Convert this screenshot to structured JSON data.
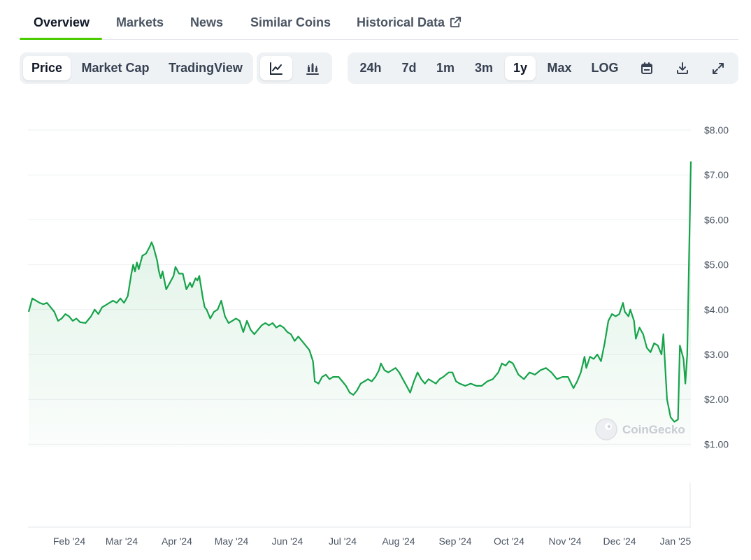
{
  "tabs": [
    {
      "label": "Overview",
      "active": true
    },
    {
      "label": "Markets"
    },
    {
      "label": "News"
    },
    {
      "label": "Similar Coins"
    },
    {
      "label": "Historical Data",
      "icon": "external-link-icon"
    }
  ],
  "view_toggle": [
    {
      "label": "Price",
      "active": true
    },
    {
      "label": "Market Cap"
    },
    {
      "label": "TradingView"
    }
  ],
  "chart_type_toggle": [
    {
      "icon": "line-chart-icon",
      "active": true
    },
    {
      "icon": "candlestick-chart-icon"
    }
  ],
  "range_toggle": [
    {
      "label": "24h"
    },
    {
      "label": "7d"
    },
    {
      "label": "1m"
    },
    {
      "label": "3m"
    },
    {
      "label": "1y",
      "active": true
    },
    {
      "label": "Max"
    },
    {
      "label": "LOG"
    }
  ],
  "toolbar_icons": [
    "calendar-icon",
    "download-icon",
    "fullscreen-icon"
  ],
  "watermark": "CoinGecko",
  "colors": {
    "line": "#16a34a",
    "fill": "#16a34a",
    "active_tab_underline": "#4bcc00"
  },
  "chart_data": {
    "type": "area",
    "y_ticks": [
      "$1.00",
      "$2.00",
      "$3.00",
      "$4.00",
      "$5.00",
      "$6.00",
      "$7.00",
      "$8.00"
    ],
    "ylim": [
      1,
      8
    ],
    "x_ticks": [
      "Feb '24",
      "Mar '24",
      "Apr '24",
      "May '24",
      "Jun '24",
      "Jul '24",
      "Aug '24",
      "Sep '24",
      "Oct '24",
      "Nov '24",
      "Dec '24",
      "Jan '25"
    ],
    "grid": true,
    "series": [
      {
        "points": [
          [
            "2024-01-09",
            3.95
          ],
          [
            "2024-01-11",
            4.25
          ],
          [
            "2024-01-13",
            4.2
          ],
          [
            "2024-01-15",
            4.15
          ],
          [
            "2024-01-17",
            4.12
          ],
          [
            "2024-01-19",
            4.15
          ],
          [
            "2024-01-21",
            4.05
          ],
          [
            "2024-01-23",
            3.95
          ],
          [
            "2024-01-25",
            3.75
          ],
          [
            "2024-01-27",
            3.8
          ],
          [
            "2024-01-29",
            3.9
          ],
          [
            "2024-01-31",
            3.85
          ],
          [
            "2024-02-02",
            3.75
          ],
          [
            "2024-02-04",
            3.8
          ],
          [
            "2024-02-06",
            3.72
          ],
          [
            "2024-02-09",
            3.7
          ],
          [
            "2024-02-12",
            3.85
          ],
          [
            "2024-02-14",
            4.0
          ],
          [
            "2024-02-16",
            3.9
          ],
          [
            "2024-02-18",
            4.05
          ],
          [
            "2024-02-20",
            4.1
          ],
          [
            "2024-02-22",
            4.15
          ],
          [
            "2024-02-24",
            4.2
          ],
          [
            "2024-02-26",
            4.15
          ],
          [
            "2024-02-28",
            4.25
          ],
          [
            "2024-03-01",
            4.15
          ],
          [
            "2024-03-03",
            4.3
          ],
          [
            "2024-03-05",
            4.8
          ],
          [
            "2024-03-06",
            5.0
          ],
          [
            "2024-03-07",
            4.85
          ],
          [
            "2024-03-08",
            5.05
          ],
          [
            "2024-03-09",
            4.9
          ],
          [
            "2024-03-11",
            5.2
          ],
          [
            "2024-03-13",
            5.25
          ],
          [
            "2024-03-15",
            5.4
          ],
          [
            "2024-03-16",
            5.5
          ],
          [
            "2024-03-17",
            5.4
          ],
          [
            "2024-03-19",
            5.1
          ],
          [
            "2024-03-20",
            4.85
          ],
          [
            "2024-03-21",
            4.7
          ],
          [
            "2024-03-22",
            4.85
          ],
          [
            "2024-03-24",
            4.45
          ],
          [
            "2024-03-26",
            4.6
          ],
          [
            "2024-03-28",
            4.75
          ],
          [
            "2024-03-29",
            4.95
          ],
          [
            "2024-03-31",
            4.8
          ],
          [
            "2024-04-02",
            4.8
          ],
          [
            "2024-04-04",
            4.45
          ],
          [
            "2024-04-06",
            4.6
          ],
          [
            "2024-04-07",
            4.5
          ],
          [
            "2024-04-09",
            4.7
          ],
          [
            "2024-04-10",
            4.65
          ],
          [
            "2024-04-11",
            4.75
          ],
          [
            "2024-04-12",
            4.5
          ],
          [
            "2024-04-13",
            4.25
          ],
          [
            "2024-04-14",
            4.05
          ],
          [
            "2024-04-15",
            4.0
          ],
          [
            "2024-04-17",
            3.8
          ],
          [
            "2024-04-19",
            3.95
          ],
          [
            "2024-04-21",
            4.0
          ],
          [
            "2024-04-23",
            4.2
          ],
          [
            "2024-04-25",
            3.85
          ],
          [
            "2024-04-27",
            3.7
          ],
          [
            "2024-04-29",
            3.75
          ],
          [
            "2024-05-01",
            3.8
          ],
          [
            "2024-05-03",
            3.75
          ],
          [
            "2024-05-05",
            3.5
          ],
          [
            "2024-05-07",
            3.75
          ],
          [
            "2024-05-09",
            3.55
          ],
          [
            "2024-05-11",
            3.45
          ],
          [
            "2024-05-13",
            3.55
          ],
          [
            "2024-05-15",
            3.65
          ],
          [
            "2024-05-17",
            3.7
          ],
          [
            "2024-05-19",
            3.65
          ],
          [
            "2024-05-21",
            3.7
          ],
          [
            "2024-05-23",
            3.6
          ],
          [
            "2024-05-25",
            3.65
          ],
          [
            "2024-05-27",
            3.6
          ],
          [
            "2024-05-29",
            3.5
          ],
          [
            "2024-05-31",
            3.45
          ],
          [
            "2024-06-02",
            3.3
          ],
          [
            "2024-06-04",
            3.4
          ],
          [
            "2024-06-06",
            3.3
          ],
          [
            "2024-06-08",
            3.2
          ],
          [
            "2024-06-10",
            3.1
          ],
          [
            "2024-06-12",
            2.85
          ],
          [
            "2024-06-13",
            2.4
          ],
          [
            "2024-06-15",
            2.35
          ],
          [
            "2024-06-17",
            2.5
          ],
          [
            "2024-06-19",
            2.55
          ],
          [
            "2024-06-21",
            2.45
          ],
          [
            "2024-06-23",
            2.5
          ],
          [
            "2024-06-26",
            2.5
          ],
          [
            "2024-06-28",
            2.4
          ],
          [
            "2024-06-30",
            2.3
          ],
          [
            "2024-07-02",
            2.15
          ],
          [
            "2024-07-04",
            2.1
          ],
          [
            "2024-07-06",
            2.2
          ],
          [
            "2024-07-08",
            2.35
          ],
          [
            "2024-07-10",
            2.4
          ],
          [
            "2024-07-12",
            2.45
          ],
          [
            "2024-07-14",
            2.4
          ],
          [
            "2024-07-16",
            2.5
          ],
          [
            "2024-07-18",
            2.65
          ],
          [
            "2024-07-19",
            2.8
          ],
          [
            "2024-07-21",
            2.65
          ],
          [
            "2024-07-23",
            2.6
          ],
          [
            "2024-07-25",
            2.65
          ],
          [
            "2024-07-27",
            2.7
          ],
          [
            "2024-07-29",
            2.6
          ],
          [
            "2024-07-31",
            2.45
          ],
          [
            "2024-08-02",
            2.3
          ],
          [
            "2024-08-04",
            2.15
          ],
          [
            "2024-08-06",
            2.4
          ],
          [
            "2024-08-08",
            2.6
          ],
          [
            "2024-08-10",
            2.45
          ],
          [
            "2024-08-12",
            2.35
          ],
          [
            "2024-08-14",
            2.45
          ],
          [
            "2024-08-16",
            2.4
          ],
          [
            "2024-08-18",
            2.35
          ],
          [
            "2024-08-20",
            2.45
          ],
          [
            "2024-08-22",
            2.5
          ],
          [
            "2024-08-25",
            2.6
          ],
          [
            "2024-08-27",
            2.6
          ],
          [
            "2024-08-29",
            2.4
          ],
          [
            "2024-08-31",
            2.35
          ],
          [
            "2024-09-03",
            2.3
          ],
          [
            "2024-09-06",
            2.35
          ],
          [
            "2024-09-09",
            2.3
          ],
          [
            "2024-09-12",
            2.3
          ],
          [
            "2024-09-15",
            2.4
          ],
          [
            "2024-09-18",
            2.45
          ],
          [
            "2024-09-21",
            2.6
          ],
          [
            "2024-09-23",
            2.8
          ],
          [
            "2024-09-25",
            2.75
          ],
          [
            "2024-09-27",
            2.85
          ],
          [
            "2024-09-29",
            2.8
          ],
          [
            "2024-10-02",
            2.55
          ],
          [
            "2024-10-05",
            2.45
          ],
          [
            "2024-10-08",
            2.6
          ],
          [
            "2024-10-11",
            2.55
          ],
          [
            "2024-10-14",
            2.65
          ],
          [
            "2024-10-17",
            2.7
          ],
          [
            "2024-10-20",
            2.6
          ],
          [
            "2024-10-23",
            2.45
          ],
          [
            "2024-10-26",
            2.5
          ],
          [
            "2024-10-29",
            2.5
          ],
          [
            "2024-11-01",
            2.25
          ],
          [
            "2024-11-03",
            2.4
          ],
          [
            "2024-11-05",
            2.6
          ],
          [
            "2024-11-07",
            2.95
          ],
          [
            "2024-11-08",
            2.7
          ],
          [
            "2024-11-10",
            2.95
          ],
          [
            "2024-11-12",
            2.9
          ],
          [
            "2024-11-14",
            3.0
          ],
          [
            "2024-11-16",
            2.85
          ],
          [
            "2024-11-18",
            3.25
          ],
          [
            "2024-11-20",
            3.75
          ],
          [
            "2024-11-22",
            3.9
          ],
          [
            "2024-11-24",
            3.85
          ],
          [
            "2024-11-26",
            3.9
          ],
          [
            "2024-11-28",
            4.15
          ],
          [
            "2024-11-29",
            3.95
          ],
          [
            "2024-12-01",
            3.85
          ],
          [
            "2024-12-02",
            4.0
          ],
          [
            "2024-12-04",
            3.75
          ],
          [
            "2024-12-05",
            3.35
          ],
          [
            "2024-12-07",
            3.6
          ],
          [
            "2024-12-09",
            3.45
          ],
          [
            "2024-12-11",
            3.15
          ],
          [
            "2024-12-13",
            3.05
          ],
          [
            "2024-12-15",
            3.25
          ],
          [
            "2024-12-17",
            3.2
          ],
          [
            "2024-12-19",
            3.0
          ],
          [
            "2024-12-20",
            3.45
          ],
          [
            "2024-12-22",
            2.0
          ],
          [
            "2024-12-24",
            1.6
          ],
          [
            "2024-12-26",
            1.5
          ],
          [
            "2024-12-28",
            1.55
          ],
          [
            "2024-12-29",
            3.2
          ],
          [
            "2024-12-31",
            2.9
          ],
          [
            "2025-01-01",
            2.35
          ],
          [
            "2025-01-02",
            3.0
          ],
          [
            "2025-01-04",
            7.3
          ]
        ]
      }
    ]
  }
}
